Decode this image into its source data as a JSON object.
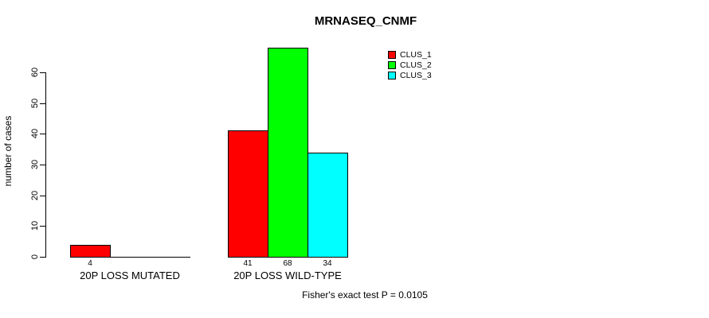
{
  "title": "MRNASEQ_CNMF",
  "chart_data": {
    "type": "bar",
    "title": "MRNASEQ_CNMF",
    "xlabel": "",
    "ylabel": "number of cases",
    "categories": [
      "20P LOSS MUTATED",
      "20P LOSS WILD-TYPE"
    ],
    "series": [
      {
        "name": "CLUS_1",
        "color": "#ff0000",
        "values": [
          4,
          41
        ]
      },
      {
        "name": "CLUS_2",
        "color": "#00ff00",
        "values": [
          0,
          68
        ]
      },
      {
        "name": "CLUS_3",
        "color": "#00ffff",
        "values": [
          0,
          34
        ]
      }
    ],
    "bar_value_labels": [
      [
        "4",
        "",
        ""
      ],
      [
        "41",
        "68",
        "34"
      ]
    ],
    "yticks": [
      0,
      10,
      20,
      30,
      40,
      50,
      60
    ],
    "ylim": [
      0,
      60
    ],
    "grid": false,
    "legend_position": "top-right",
    "annotation": "Fisher's exact test P = 0.0105"
  },
  "colors": {
    "background": "#ffffff",
    "axis": "#000000",
    "text": "#000000"
  }
}
